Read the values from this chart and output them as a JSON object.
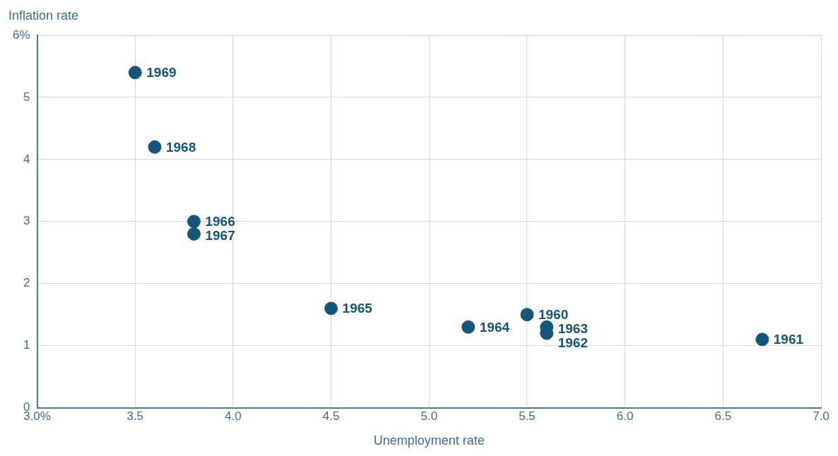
{
  "chart_data": {
    "type": "scatter",
    "xlabel": "Unemployment rate",
    "ylabel": "Inflation rate",
    "x": [
      3.5,
      3.6,
      3.8,
      3.8,
      4.5,
      5.2,
      5.5,
      5.6,
      5.6,
      6.7
    ],
    "series": [
      {
        "color": "#14557a",
        "values": [
          5.4,
          4.2,
          3.0,
          2.8,
          1.6,
          1.3,
          1.5,
          1.3,
          1.2,
          1.1
        ]
      }
    ],
    "xlim": [
      3.0,
      7.0
    ],
    "xticks": [
      {
        "value": 3.0,
        "label": "3.0%"
      },
      3.5,
      {
        "value": 4.0,
        "label": "4.0"
      },
      4.5,
      {
        "value": 5.0,
        "label": "5.0"
      },
      5.5,
      {
        "value": 6.0,
        "label": "6.0"
      },
      6.5,
      {
        "value": 7.0,
        "label": "7.0"
      }
    ],
    "ylim": [
      0,
      6
    ],
    "yticks": [
      0,
      1,
      2,
      3,
      4,
      5,
      {
        "value": 6,
        "label": "6%"
      }
    ],
    "grid": true,
    "legend": false,
    "marker": "circle",
    "annotations": [
      {
        "text": "1969",
        "x": 3.5,
        "y": 5.4
      },
      {
        "text": "1968",
        "x": 3.6,
        "y": 4.2
      },
      {
        "text": "1966",
        "x": 3.8,
        "y": 3.0
      },
      {
        "text": "1967",
        "x": 3.8,
        "y": 2.8
      },
      {
        "text": "1965",
        "x": 4.5,
        "y": 1.6
      },
      {
        "text": "1964",
        "x": 5.2,
        "y": 1.3
      },
      {
        "text": "1960",
        "x": 5.5,
        "y": 1.5
      },
      {
        "text": "1963",
        "x": 5.6,
        "y": 1.3
      },
      {
        "text": "1962",
        "x": 5.6,
        "y": 1.2
      },
      {
        "text": "1961",
        "x": 6.7,
        "y": 1.1
      }
    ]
  }
}
